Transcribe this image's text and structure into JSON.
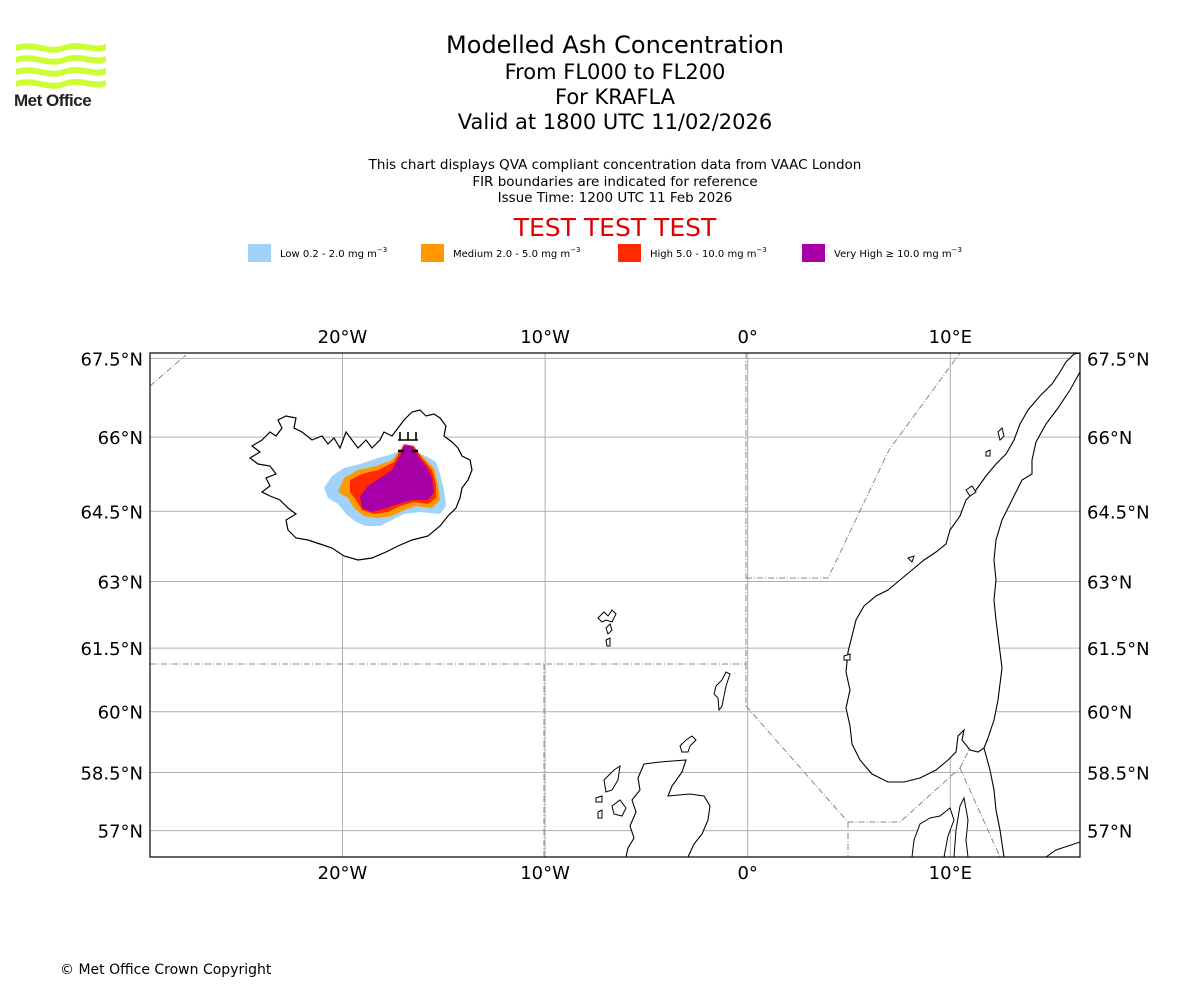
{
  "header": {
    "logo_text": "Met Office",
    "title_lines": [
      "Modelled Ash Concentration",
      "From FL000 to FL200",
      "For KRAFLA",
      "Valid at 1800 UTC 11/02/2026"
    ],
    "subtitle_lines": [
      "This chart displays QVA compliant concentration data from VAAC London",
      "FIR boundaries are indicated for reference",
      "Issue Time: 1200 UTC 11 Feb 2026"
    ],
    "test_banner": "TEST TEST TEST"
  },
  "legend": [
    {
      "label": "Low 0.2 - 2.0 mg m",
      "unit_exp": "−3",
      "color": "#a0d2fa"
    },
    {
      "label": "Medium 2.0 - 5.0 mg m",
      "unit_exp": "−3",
      "color": "#ff9900"
    },
    {
      "label": "High 5.0 - 10.0 mg m",
      "unit_exp": "−3",
      "color": "#ff2a00"
    },
    {
      "label": "Very High ≥ 10.0 mg m",
      "unit_exp": "−3",
      "color": "#a800a8"
    }
  ],
  "map": {
    "volcano": "KRAFLA",
    "volcano_icon": "volcano-icon",
    "lon_range": [
      -29.5,
      16.4
    ],
    "lat_range": [
      56.3,
      67.6
    ],
    "lon_ticks": [
      {
        "value": -20,
        "label": "20°W"
      },
      {
        "value": -10,
        "label": "10°W"
      },
      {
        "value": 0,
        "label": "0°"
      },
      {
        "value": 10,
        "label": "10°E"
      }
    ],
    "lat_ticks": [
      {
        "value": 67.5,
        "label": "67.5°N"
      },
      {
        "value": 66,
        "label": "66°N"
      },
      {
        "value": 64.5,
        "label": "64.5°N"
      },
      {
        "value": 63,
        "label": "63°N"
      },
      {
        "value": 61.5,
        "label": "61.5°N"
      },
      {
        "value": 60,
        "label": "60°N"
      },
      {
        "value": 58.5,
        "label": "58.5°N"
      },
      {
        "value": 57,
        "label": "57°N"
      }
    ],
    "colors": {
      "grid": "#b0b0b0",
      "fir": "#888888",
      "coast": "#000000"
    }
  },
  "footer": {
    "copyright": "© Met Office Crown Copyright"
  }
}
